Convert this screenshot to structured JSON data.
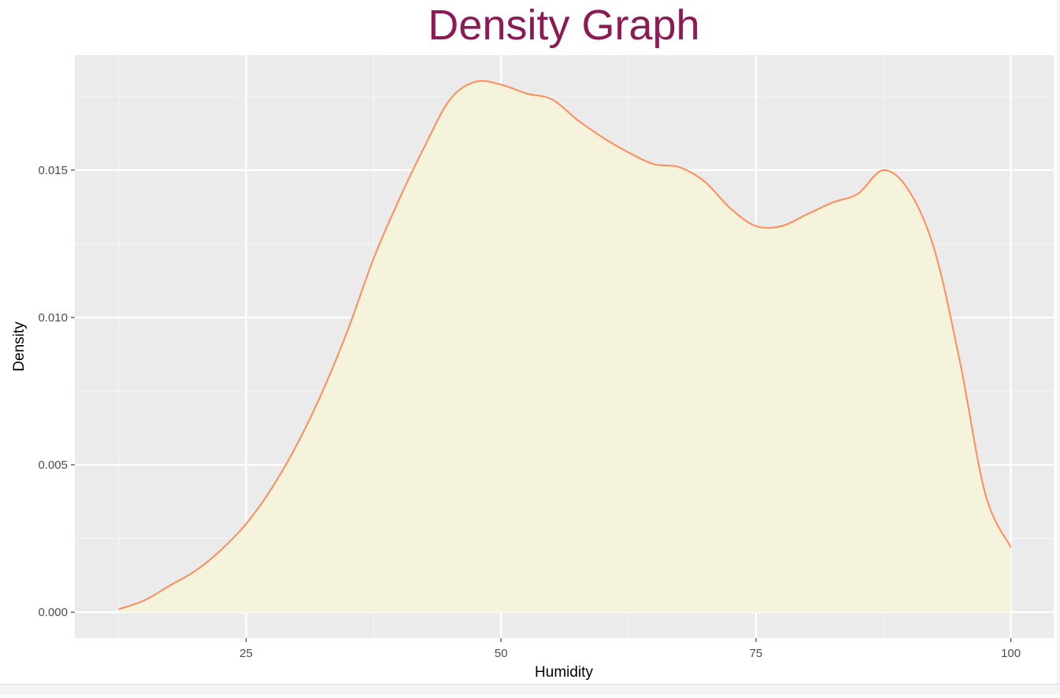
{
  "colors": {
    "title": "#8b1a55",
    "panel_background": "#ebebeb",
    "grid_major": "#ffffff",
    "grid_minor": "#f5f5f5",
    "density_fill": "#f5f3dc",
    "density_line": "#ff8c5a",
    "tick_color": "#333333"
  },
  "chart_data": {
    "type": "area",
    "title": "Density Graph",
    "xlabel": "Humidity",
    "ylabel": "Density",
    "xlim": [
      8.2,
      104.2
    ],
    "ylim": [
      -0.00088,
      0.0189
    ],
    "x_ticks": [
      25,
      50,
      75,
      100
    ],
    "x_tick_labels": [
      "25",
      "50",
      "75",
      "100"
    ],
    "y_ticks": [
      0.0,
      0.005,
      0.01,
      0.015
    ],
    "y_tick_labels": [
      "0.000",
      "0.005",
      "0.010",
      "0.015"
    ],
    "grid": true,
    "legend": false,
    "series": [
      {
        "x": [
          12.5,
          15,
          17.5,
          20,
          22.5,
          25,
          27.5,
          30,
          32.5,
          35,
          37.5,
          40,
          42.5,
          45,
          47.5,
          50,
          52.5,
          55,
          57.5,
          60,
          62.5,
          65,
          67.5,
          70,
          72.5,
          75,
          77.5,
          80,
          82.5,
          85,
          87.5,
          90,
          92.5,
          95,
          97.5,
          100
        ],
        "y": [
          0.0001,
          0.0004,
          0.0009,
          0.0014,
          0.0021,
          0.003,
          0.0042,
          0.0057,
          0.0075,
          0.0096,
          0.012,
          0.014,
          0.0158,
          0.0174,
          0.018,
          0.0179,
          0.0176,
          0.0174,
          0.0167,
          0.0161,
          0.0156,
          0.0152,
          0.0151,
          0.0146,
          0.0137,
          0.0131,
          0.0131,
          0.0135,
          0.0139,
          0.0142,
          0.015,
          0.0143,
          0.0123,
          0.0085,
          0.004,
          0.0022
        ]
      }
    ]
  }
}
